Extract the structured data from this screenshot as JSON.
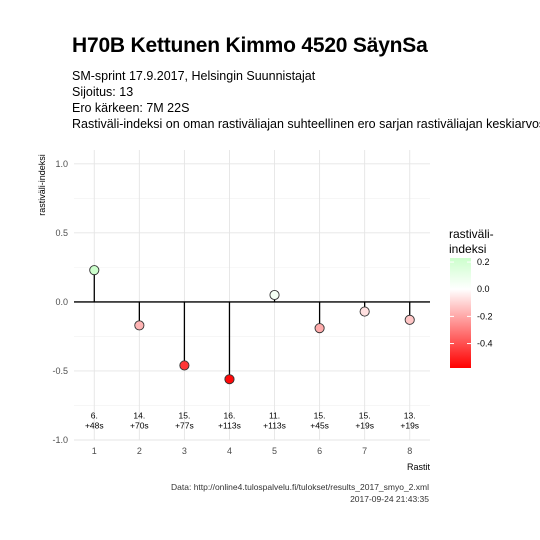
{
  "chart_data": {
    "type": "lollipop",
    "title": "H70B Kettunen Kimmo 4520 SäynSa",
    "subtitle_lines": [
      "SM-sprint 17.9.2017, Helsingin Suunnistajat",
      "Sijoitus: 13",
      "Ero kärkeen: 7M 22S",
      "Rastiväli-indeksi on oman rastiväliajan suhteellinen ero sarjan rastiväliajan keskiarvosta"
    ],
    "xlabel": "Rastit",
    "ylabel": "rastiväli-indeksi",
    "ylim": [
      -1.0,
      1.1
    ],
    "xlim": [
      0.55,
      8.45
    ],
    "y_ticks": [
      1.0,
      0.5,
      0.0,
      -0.5,
      -1.0
    ],
    "y_tick_labels": [
      "1.0",
      "0.5",
      "0.0",
      "-0.5",
      "-1.0"
    ],
    "x": [
      1,
      2,
      3,
      4,
      5,
      6,
      7,
      8
    ],
    "x_tick_labels": [
      "1",
      "2",
      "3",
      "4",
      "5",
      "6",
      "7",
      "8"
    ],
    "values": [
      0.23,
      -0.17,
      -0.46,
      -0.56,
      0.05,
      -0.19,
      -0.07,
      -0.13
    ],
    "point_labels": [
      [
        "6.",
        "+48s"
      ],
      [
        "14.",
        "+70s"
      ],
      [
        "15.",
        "+77s"
      ],
      [
        "16.",
        "+113s"
      ],
      [
        "11.",
        "+113s"
      ],
      [
        "15.",
        "+45s"
      ],
      [
        "15.",
        "+19s"
      ],
      [
        "13.",
        "+19s"
      ]
    ],
    "grid": true,
    "legend": {
      "title_lines": [
        "rastiväli-",
        "indeksi"
      ],
      "placement": "right",
      "ticks": [
        0.2,
        0.0,
        -0.2,
        -0.4
      ],
      "tick_labels": [
        "0.2",
        "0.0",
        "-0.2",
        "-0.4"
      ],
      "range": [
        -0.58,
        0.23
      ]
    },
    "colors": {
      "positive": "#ccffcc",
      "zero": "#ffffff",
      "negative": "#ff0000",
      "grid": "#e5e5e5",
      "baseline": "#000000"
    }
  },
  "caption_lines": [
    "Data: http://online4.tulospalvelu.fi/tulokset/results_2017_smyo_2.xml",
    "2017-09-24 21:43:35"
  ]
}
